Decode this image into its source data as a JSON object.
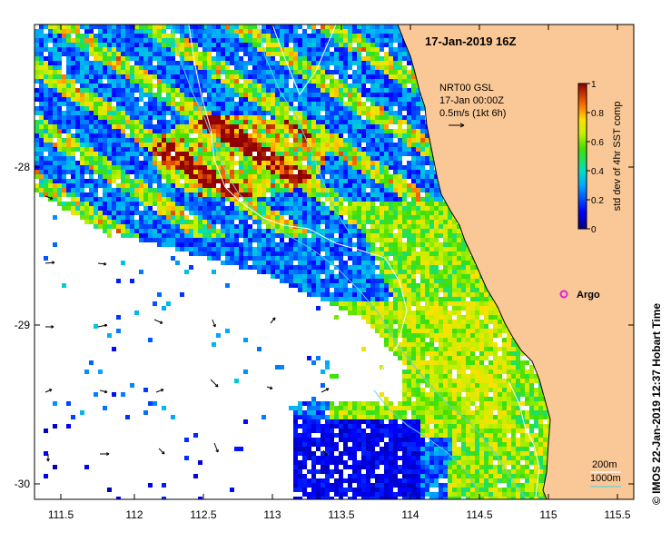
{
  "map": {
    "title": "17-Jan-2019 16Z",
    "info_lines": [
      "NRT00 GSL",
      "17-Jan 00:00Z",
      "0.5m/s (1kt 6h)"
    ],
    "credit": "© IMOS 22-Jan-2019 12:37 Hobart Time",
    "colorbar": {
      "label": "std dev of 4hr SST comp",
      "ticks": [
        "0",
        "0.2",
        "0.4",
        "0.6",
        "0.8",
        "1"
      ],
      "min": 0,
      "max": 1
    },
    "argo_label": "Argo",
    "contour_labels": [
      "200m",
      "1000m"
    ],
    "x_axis": {
      "ticks": [
        "111.5",
        "112",
        "112.5",
        "113",
        "113.5",
        "114",
        "114.5",
        "115",
        "115.5"
      ]
    },
    "y_axis": {
      "ticks": [
        "-28",
        "-29",
        "-30"
      ]
    },
    "colors": {
      "land": "#fac896",
      "contour_200": "#5fd2e6",
      "contour_1000": "#ffffff",
      "argo": "#e020e0"
    }
  }
}
